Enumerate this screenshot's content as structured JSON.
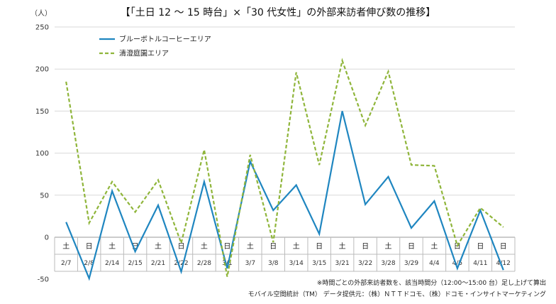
{
  "chart_data": {
    "type": "line",
    "title": "【「土日 12 ～ 15 時台」×「30 代女性」の外部来訪者伸び数の推移】",
    "ylabel": "（人）",
    "ylim": [
      -50,
      250
    ],
    "yticks": [
      -50,
      0,
      50,
      100,
      150,
      200,
      250
    ],
    "grid": true,
    "legend_position": "top-left",
    "categories": [
      "2/7",
      "2/8",
      "2/14",
      "2/15",
      "2/21",
      "2/22",
      "2/28",
      "3/1",
      "3/7",
      "3/8",
      "3/14",
      "3/15",
      "3/21",
      "3/22",
      "3/28",
      "3/29",
      "4/4",
      "4/5",
      "4/11",
      "4/12"
    ],
    "day_labels": [
      "土",
      "日",
      "土",
      "日",
      "土",
      "日",
      "土",
      "日",
      "土",
      "日",
      "土",
      "日",
      "土",
      "日",
      "土",
      "日",
      "土",
      "日",
      "日",
      "日"
    ],
    "series": [
      {
        "name": "ブルーボトルコーヒーエリア",
        "color": "#1f86c0",
        "dash": "solid",
        "values": [
          18,
          -49,
          55,
          -17,
          38,
          -41,
          66,
          -37,
          90,
          32,
          62,
          4,
          150,
          39,
          72,
          11,
          43,
          -37,
          32,
          -39
        ]
      },
      {
        "name": "清澄庭園エリア",
        "color": "#8fb53a",
        "dash": "dashed",
        "values": [
          185,
          17,
          66,
          30,
          68,
          -7,
          104,
          -47,
          98,
          -6,
          196,
          86,
          210,
          133,
          197,
          86,
          85,
          -10,
          35,
          12
        ]
      }
    ],
    "notes": [
      "※時間ごとの外部来訪者数を、該当時間分（12:00〜15:00 台）足し上げて算出",
      "モバイル空間統計（TM） データ提供元：（株）ＮＴＴドコモ、（株）ドコモ・インサイトマーケティング"
    ]
  }
}
